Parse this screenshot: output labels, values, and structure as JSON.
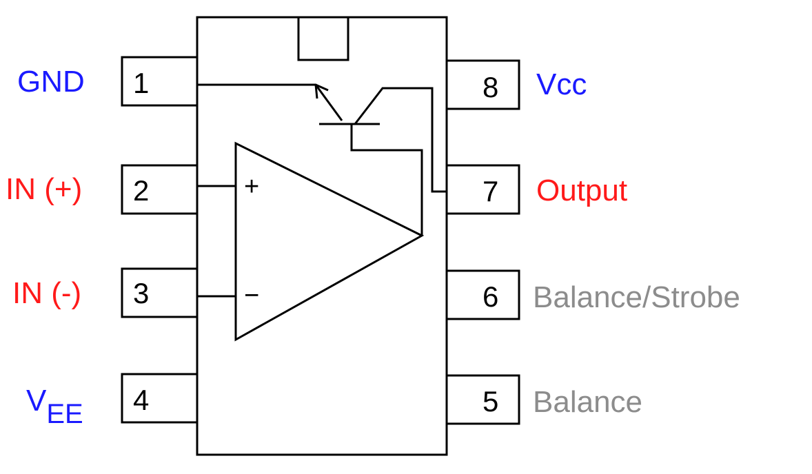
{
  "pins": {
    "p1": {
      "number": "1",
      "label": "GND"
    },
    "p2": {
      "number": "2",
      "label": "IN (+)"
    },
    "p3": {
      "number": "3",
      "label": "IN (-)"
    },
    "p4": {
      "number": "4",
      "label_main": "V",
      "label_sub": "EE"
    },
    "p5": {
      "number": "5",
      "label": "Balance"
    },
    "p6": {
      "number": "6",
      "label": "Balance/Strobe"
    },
    "p7": {
      "number": "7",
      "label": "Output"
    },
    "p8": {
      "number": "8",
      "label": "Vcc"
    }
  },
  "amp": {
    "plus": "+",
    "minus": "−"
  },
  "colors": {
    "power": "#1a1aff",
    "signal": "#ff1a1a",
    "balance": "#8c8c8c",
    "line": "#000000"
  }
}
